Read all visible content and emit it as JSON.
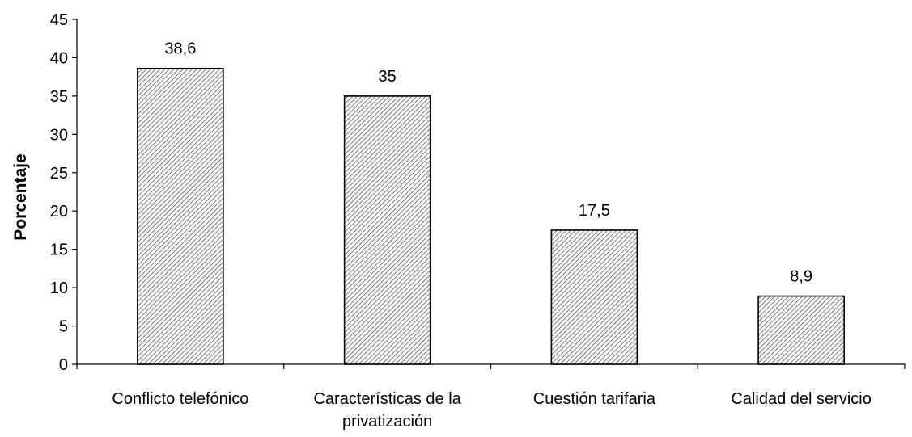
{
  "chart_data": {
    "type": "bar",
    "categories": [
      [
        "Conflicto telefónico"
      ],
      [
        "Características de la",
        "privatización"
      ],
      [
        "Cuestión tarifaria"
      ],
      [
        "Calidad del servicio"
      ]
    ],
    "values": [
      38.6,
      35,
      17.5,
      8.9
    ],
    "data_labels": [
      "38,6",
      "35",
      "17,5",
      "8,9"
    ],
    "ylabel": "Porcentaje",
    "ylim": [
      0,
      45
    ],
    "yticks": [
      0,
      5,
      10,
      15,
      20,
      25,
      30,
      35,
      40,
      45
    ],
    "bar_fill": "hatched",
    "colors": {
      "bar_stroke": "#000000",
      "hatch": "#555555",
      "bar_bg": "#ffffff"
    }
  }
}
